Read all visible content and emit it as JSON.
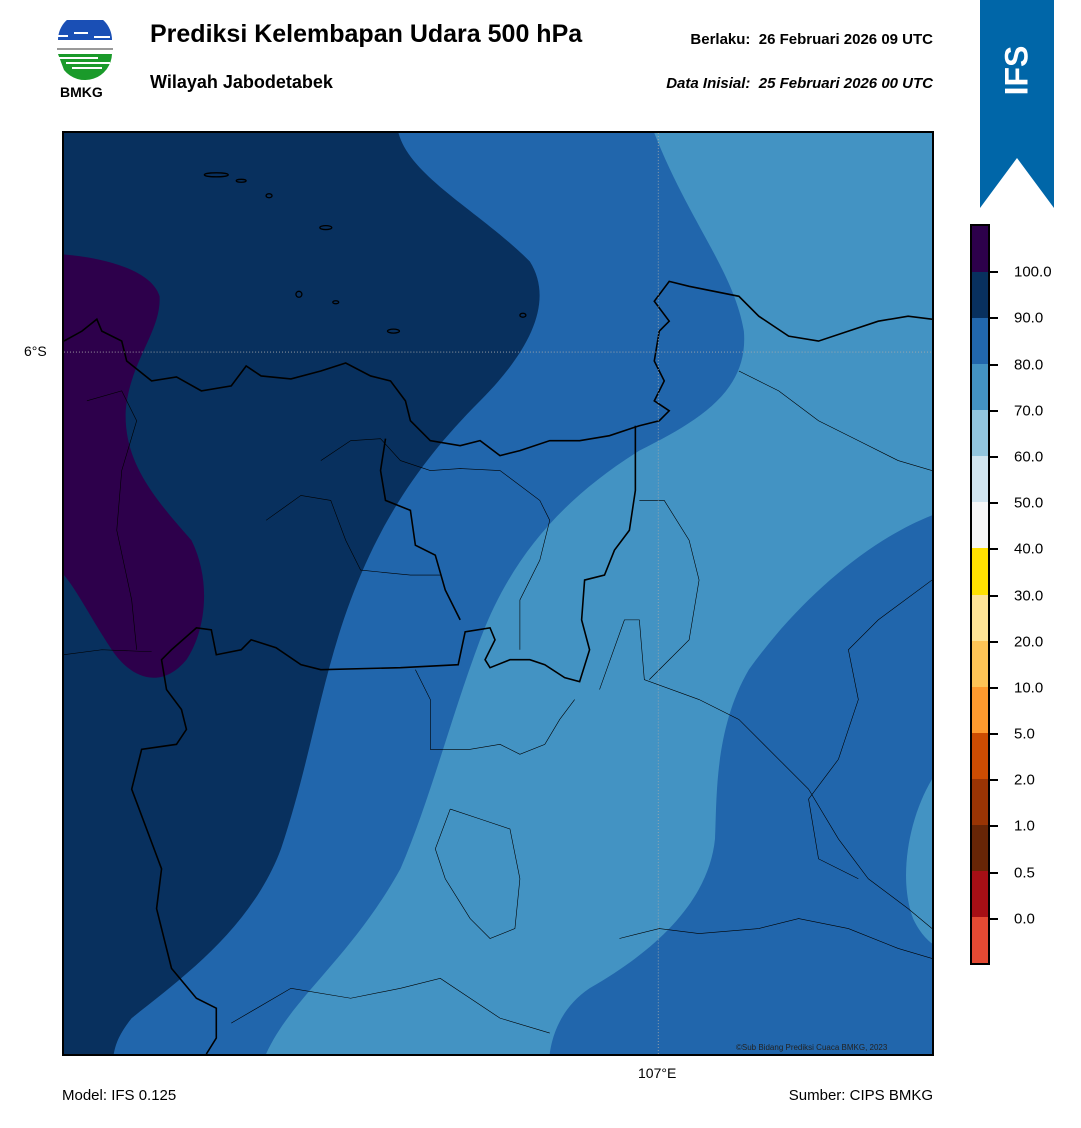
{
  "header": {
    "logo_text": "BMKG",
    "title": "Prediksi Kelembapan Udara 500 hPa",
    "subtitle": "Wilayah Jabodetabek",
    "valid": "Berlaku:  26 Februari 2026 09 UTC",
    "initial": "Data Inisial:  25 Februari 2026 00 UTC"
  },
  "badge": "IFS",
  "map": {
    "lat_label": "6°S",
    "lon_label": "107°E",
    "copyright": "©Sub Bidang Prediksi Cuaca BMKG, 2023"
  },
  "footer": {
    "model": "Model: IFS 0.125",
    "source": "Sumber: CIPS BMKG"
  },
  "colorbar": {
    "labels": [
      "100.0",
      "90.0",
      "80.0",
      "70.0",
      "60.0",
      "50.0",
      "40.0",
      "30.0",
      "20.0",
      "10.0",
      "5.0",
      "2.0",
      "1.0",
      "0.5",
      "0.0"
    ],
    "colors": [
      "#2d004b",
      "#08305e",
      "#2166ac",
      "#4393c3",
      "#92c5de",
      "#d1e5f0",
      "#f7f7f7",
      "#ffe000",
      "#fee395",
      "#fec456",
      "#fe9a2e",
      "#cc4c02",
      "#993404",
      "#662506",
      "#a50f15",
      "#e34a33"
    ]
  },
  "colors": {
    "badge": "#0066a8",
    "purple": "#2d004b",
    "dark": "#08305e",
    "mid": "#2166ac",
    "light": "#4393c3"
  }
}
